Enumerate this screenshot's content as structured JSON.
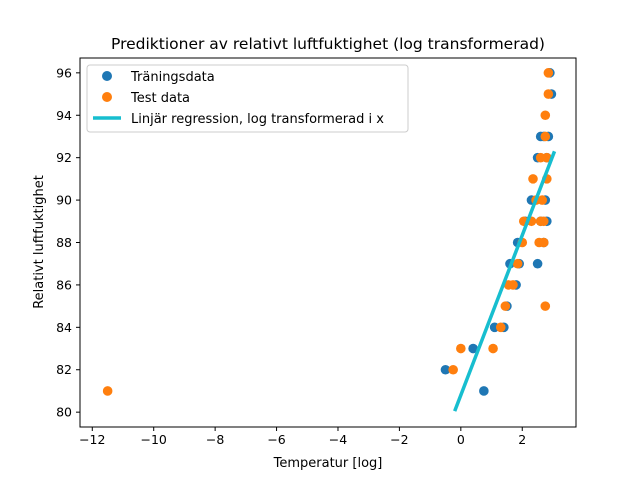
{
  "chart_data": {
    "type": "scatter",
    "title": "Prediktioner av relativt luftfuktighet (log transformerad)",
    "xlabel": "Temperatur [log]",
    "ylabel": "Relativt luftfuktighet",
    "xlim": [
      -12.4,
      3.75
    ],
    "ylim": [
      79.3,
      96.7
    ],
    "xticks": [
      -12,
      -10,
      -8,
      -6,
      -4,
      -2,
      0,
      2
    ],
    "xtick_labels": [
      "−12",
      "−10",
      "−8",
      "−6",
      "−4",
      "−2",
      "0",
      "2"
    ],
    "yticks": [
      80,
      82,
      84,
      86,
      88,
      90,
      92,
      94,
      96
    ],
    "ytick_labels": [
      "80",
      "82",
      "84",
      "86",
      "88",
      "90",
      "92",
      "94",
      "96"
    ],
    "grid": false,
    "legend_position": "top-left",
    "series": [
      {
        "name": "Träningsdata",
        "kind": "scatter",
        "color": "#1f77b4",
        "points": [
          [
            -0.5,
            82
          ],
          [
            0.4,
            83
          ],
          [
            0.75,
            81
          ],
          [
            1.1,
            84
          ],
          [
            1.4,
            84
          ],
          [
            1.5,
            85
          ],
          [
            1.6,
            87
          ],
          [
            1.85,
            88
          ],
          [
            1.8,
            86
          ],
          [
            1.9,
            87
          ],
          [
            2.1,
            89
          ],
          [
            2.3,
            90
          ],
          [
            2.5,
            87
          ],
          [
            2.5,
            92
          ],
          [
            2.6,
            93
          ],
          [
            2.6,
            89
          ],
          [
            2.7,
            88
          ],
          [
            2.75,
            90
          ],
          [
            2.8,
            89
          ],
          [
            2.8,
            92
          ],
          [
            2.85,
            93
          ],
          [
            2.9,
            96
          ],
          [
            2.95,
            95
          ],
          [
            2.7,
            93
          ]
        ]
      },
      {
        "name": "Test data",
        "kind": "scatter",
        "color": "#ff7f0e",
        "points": [
          [
            -11.5,
            81
          ],
          [
            -0.25,
            82
          ],
          [
            0.0,
            83
          ],
          [
            1.05,
            83
          ],
          [
            1.3,
            84
          ],
          [
            1.45,
            85
          ],
          [
            1.55,
            86
          ],
          [
            1.7,
            86
          ],
          [
            1.85,
            87
          ],
          [
            2.0,
            88
          ],
          [
            2.05,
            89
          ],
          [
            2.3,
            89
          ],
          [
            2.35,
            91
          ],
          [
            2.45,
            90
          ],
          [
            2.55,
            88
          ],
          [
            2.6,
            89
          ],
          [
            2.65,
            90
          ],
          [
            2.7,
            88
          ],
          [
            2.75,
            85
          ],
          [
            2.75,
            94
          ],
          [
            2.75,
            93
          ],
          [
            2.8,
            92
          ],
          [
            2.8,
            91
          ],
          [
            2.85,
            95
          ],
          [
            2.85,
            96
          ],
          [
            2.7,
            89
          ],
          [
            2.6,
            92
          ]
        ]
      },
      {
        "name": "Linjär regression, log transformerad i x",
        "kind": "line",
        "color": "#17becf",
        "points": [
          [
            -0.2,
            80.05
          ],
          [
            3.05,
            92.3
          ]
        ]
      }
    ]
  }
}
